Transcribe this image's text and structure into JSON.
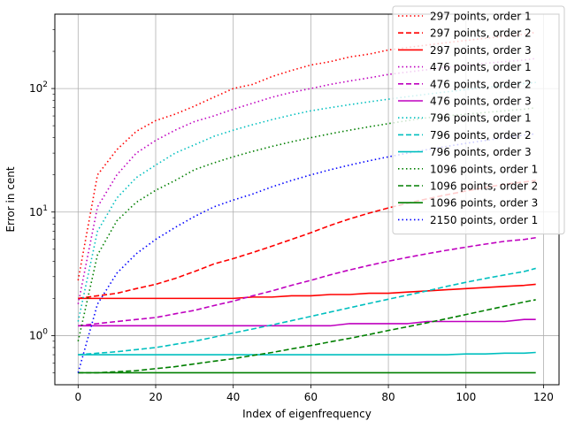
{
  "chart_data": {
    "type": "line",
    "title": "",
    "xlabel": "Index of eigenfrequency",
    "ylabel": "Error in cent",
    "xlim": [
      -6,
      124
    ],
    "ylim": [
      0.4,
      400
    ],
    "yscale": "log",
    "grid": true,
    "legend_position": "upper-right",
    "x_ticks": [
      0,
      20,
      40,
      60,
      80,
      100,
      120
    ],
    "y_ticks": [
      1,
      10,
      100
    ],
    "x_tick_labels": [
      "0",
      "20",
      "40",
      "60",
      "80",
      "100",
      "120"
    ],
    "y_tick_labels": [
      "10^0",
      "10^1",
      "10^2"
    ],
    "x": [
      0,
      5,
      10,
      15,
      20,
      25,
      30,
      35,
      40,
      45,
      50,
      55,
      60,
      65,
      70,
      75,
      80,
      85,
      90,
      95,
      100,
      105,
      110,
      115,
      118
    ],
    "series": [
      {
        "name": "297 points, order 1",
        "color": "#ff0000",
        "style": "dotted",
        "values": [
          2.8,
          20,
          32,
          45,
          55,
          62,
          72,
          85,
          100,
          108,
          125,
          140,
          155,
          165,
          180,
          190,
          205,
          215,
          225,
          235,
          245,
          255,
          265,
          275,
          285
        ]
      },
      {
        "name": "297 points, order 2",
        "color": "#ff0000",
        "style": "dashed",
        "values": [
          2.0,
          2.1,
          2.2,
          2.4,
          2.6,
          2.9,
          3.3,
          3.8,
          4.2,
          4.7,
          5.3,
          6.0,
          6.8,
          7.8,
          8.8,
          9.8,
          10.8,
          11.8,
          12.8,
          13.8,
          14.8,
          15.8,
          16.8,
          17.5,
          18.0
        ]
      },
      {
        "name": "297 points, order 3",
        "color": "#ff0000",
        "style": "solid",
        "values": [
          2.0,
          2.0,
          2.0,
          2.0,
          2.0,
          2.0,
          2.0,
          2.0,
          2.0,
          2.05,
          2.05,
          2.1,
          2.1,
          2.15,
          2.15,
          2.2,
          2.2,
          2.25,
          2.3,
          2.35,
          2.4,
          2.45,
          2.5,
          2.55,
          2.6
        ]
      },
      {
        "name": "476 points, order 1",
        "color": "#bf00bf",
        "style": "dotted",
        "values": [
          1.8,
          11,
          20,
          30,
          38,
          46,
          54,
          60,
          68,
          76,
          85,
          93,
          100,
          108,
          115,
          122,
          130,
          136,
          142,
          148,
          154,
          160,
          165,
          170,
          175
        ]
      },
      {
        "name": "476 points, order 2",
        "color": "#bf00bf",
        "style": "dashed",
        "values": [
          1.2,
          1.25,
          1.3,
          1.35,
          1.4,
          1.5,
          1.6,
          1.75,
          1.9,
          2.1,
          2.3,
          2.55,
          2.8,
          3.1,
          3.4,
          3.7,
          4.0,
          4.3,
          4.6,
          4.9,
          5.2,
          5.5,
          5.8,
          6.0,
          6.2
        ]
      },
      {
        "name": "476 points, order 3",
        "color": "#bf00bf",
        "style": "solid",
        "values": [
          1.2,
          1.2,
          1.2,
          1.2,
          1.2,
          1.2,
          1.2,
          1.2,
          1.2,
          1.2,
          1.2,
          1.2,
          1.2,
          1.2,
          1.25,
          1.25,
          1.25,
          1.25,
          1.3,
          1.3,
          1.3,
          1.3,
          1.3,
          1.35,
          1.35
        ]
      },
      {
        "name": "796 points, order 1",
        "color": "#00bfbf",
        "style": "dotted",
        "values": [
          1.3,
          7,
          13,
          19,
          24,
          30,
          35,
          41,
          46,
          51,
          56,
          61,
          66,
          70,
          74,
          78,
          82,
          86,
          90,
          94,
          98,
          102,
          106,
          110,
          112
        ]
      },
      {
        "name": "796 points, order 2",
        "color": "#00bfbf",
        "style": "dashed",
        "values": [
          0.7,
          0.72,
          0.74,
          0.77,
          0.8,
          0.85,
          0.9,
          0.97,
          1.05,
          1.13,
          1.22,
          1.32,
          1.43,
          1.55,
          1.68,
          1.82,
          1.97,
          2.13,
          2.3,
          2.5,
          2.7,
          2.9,
          3.1,
          3.3,
          3.5
        ]
      },
      {
        "name": "796 points, order 3",
        "color": "#00bfbf",
        "style": "solid",
        "values": [
          0.7,
          0.7,
          0.7,
          0.7,
          0.7,
          0.7,
          0.7,
          0.7,
          0.7,
          0.7,
          0.7,
          0.7,
          0.7,
          0.7,
          0.7,
          0.7,
          0.7,
          0.7,
          0.7,
          0.7,
          0.71,
          0.71,
          0.72,
          0.72,
          0.73
        ]
      },
      {
        "name": "1096 points, order 1",
        "color": "#007f00",
        "style": "dotted",
        "values": [
          0.9,
          4.5,
          8.5,
          12,
          15,
          18,
          22,
          25,
          28,
          31,
          34,
          37,
          40,
          43,
          46,
          49,
          52,
          55,
          58,
          60,
          62,
          64,
          66,
          68,
          70
        ]
      },
      {
        "name": "1096 points, order 2",
        "color": "#007f00",
        "style": "dashed",
        "values": [
          0.5,
          0.5,
          0.51,
          0.52,
          0.54,
          0.56,
          0.59,
          0.62,
          0.65,
          0.69,
          0.73,
          0.78,
          0.83,
          0.89,
          0.95,
          1.02,
          1.1,
          1.18,
          1.27,
          1.37,
          1.48,
          1.6,
          1.73,
          1.87,
          1.95
        ]
      },
      {
        "name": "1096 points, order 3",
        "color": "#007f00",
        "style": "solid",
        "values": [
          0.5,
          0.5,
          0.5,
          0.5,
          0.5,
          0.5,
          0.5,
          0.5,
          0.5,
          0.5,
          0.5,
          0.5,
          0.5,
          0.5,
          0.5,
          0.5,
          0.5,
          0.5,
          0.5,
          0.5,
          0.5,
          0.5,
          0.5,
          0.5,
          0.5
        ]
      },
      {
        "name": "2150 points, order 1",
        "color": "#0000ff",
        "style": "dotted",
        "values": [
          0.5,
          1.8,
          3.2,
          4.6,
          6.0,
          7.5,
          9.2,
          11,
          12.5,
          14,
          16,
          18,
          20,
          22,
          24,
          26,
          28,
          30,
          32,
          34,
          36,
          38,
          40,
          42,
          43
        ]
      }
    ]
  }
}
